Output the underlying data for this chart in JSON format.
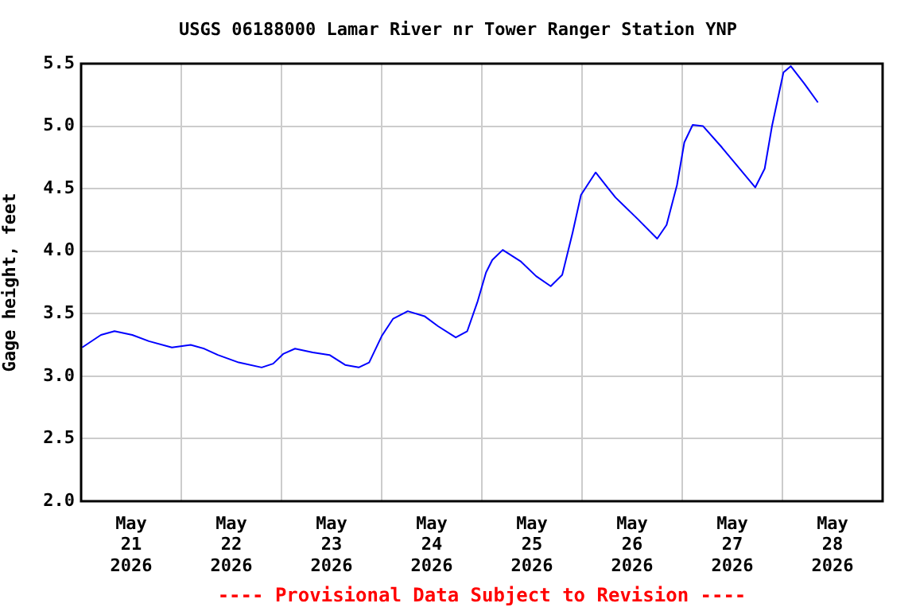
{
  "chart_data": {
    "type": "line",
    "title": "USGS 06188000 Lamar River nr Tower Ranger Station YNP",
    "ylabel": "Gage height, feet",
    "annotations": [
      "---- Provisional Data Subject to Revision ----"
    ],
    "x": [
      "2026-05-21T00:15",
      "2026-05-21T04:45",
      "2026-05-21T08:00",
      "2026-05-21T12:15",
      "2026-05-21T16:15",
      "2026-05-21T21:45",
      "2026-05-22T02:15",
      "2026-05-22T05:30",
      "2026-05-22T08:45",
      "2026-05-22T13:45",
      "2026-05-22T19:15",
      "2026-05-22T22:00",
      "2026-05-23T00:30",
      "2026-05-23T03:15",
      "2026-05-23T07:30",
      "2026-05-23T11:30",
      "2026-05-23T15:15",
      "2026-05-23T18:30",
      "2026-05-23T21:00",
      "2026-05-24T00:00",
      "2026-05-24T02:45",
      "2026-05-24T06:15",
      "2026-05-24T10:15",
      "2026-05-24T13:30",
      "2026-05-24T17:45",
      "2026-05-24T20:30",
      "2026-05-24T23:00",
      "2026-05-25T01:00",
      "2026-05-25T02:30",
      "2026-05-25T05:00",
      "2026-05-25T09:15",
      "2026-05-25T13:00",
      "2026-05-25T16:30",
      "2026-05-25T19:15",
      "2026-05-25T21:45",
      "2026-05-25T23:45",
      "2026-05-26T03:15",
      "2026-05-26T08:00",
      "2026-05-26T13:15",
      "2026-05-26T18:00",
      "2026-05-26T20:15",
      "2026-05-26T22:45",
      "2026-05-27T00:30",
      "2026-05-27T02:30",
      "2026-05-27T05:00",
      "2026-05-27T09:30",
      "2026-05-27T13:15",
      "2026-05-27T17:30",
      "2026-05-27T19:45",
      "2026-05-27T21:30",
      "2026-05-28T00:15",
      "2026-05-28T02:00",
      "2026-05-28T05:15",
      "2026-05-28T08:30"
    ],
    "series": [
      {
        "color": "#0000ff",
        "values": [
          3.23,
          3.33,
          3.36,
          3.33,
          3.28,
          3.23,
          3.25,
          3.22,
          3.17,
          3.11,
          3.07,
          3.1,
          3.18,
          3.22,
          3.19,
          3.17,
          3.09,
          3.07,
          3.11,
          3.32,
          3.46,
          3.52,
          3.48,
          3.4,
          3.31,
          3.36,
          3.6,
          3.83,
          3.93,
          4.01,
          3.92,
          3.8,
          3.72,
          3.81,
          4.15,
          4.45,
          4.63,
          4.43,
          4.26,
          4.1,
          4.21,
          4.53,
          4.87,
          5.01,
          5.0,
          4.83,
          4.68,
          4.51,
          4.66,
          5.0,
          5.43,
          5.48,
          5.34,
          5.19
        ]
      }
    ],
    "xlim": [
      "2026-05-21",
      "2026-05-29"
    ],
    "xticks": [
      {
        "value": "2026-05-21",
        "label": null
      },
      {
        "value": "2026-05-21T12:00",
        "label": "May\n21\n2026"
      },
      {
        "value": "2026-05-22",
        "label": null
      },
      {
        "value": "2026-05-22T12:00",
        "label": "May\n22\n2026"
      },
      {
        "value": "2026-05-23",
        "label": null
      },
      {
        "value": "2026-05-23T12:00",
        "label": "May\n23\n2026"
      },
      {
        "value": "2026-05-24",
        "label": null
      },
      {
        "value": "2026-05-24T12:00",
        "label": "May\n24\n2026"
      },
      {
        "value": "2026-05-25",
        "label": null
      },
      {
        "value": "2026-05-25T12:00",
        "label": "May\n25\n2026"
      },
      {
        "value": "2026-05-26",
        "label": null
      },
      {
        "value": "2026-05-26T12:00",
        "label": "May\n26\n2026"
      },
      {
        "value": "2026-05-27",
        "label": null
      },
      {
        "value": "2026-05-27T12:00",
        "label": "May\n27\n2026"
      },
      {
        "value": "2026-05-28",
        "label": null
      },
      {
        "value": "2026-05-28T12:00",
        "label": "May\n28\n2026"
      },
      {
        "value": "2026-05-29",
        "label": null
      }
    ],
    "ylim": [
      2.0,
      5.5
    ],
    "yticks": [
      {
        "value": 2.0,
        "label": "2.0"
      },
      {
        "value": 2.5,
        "label": "2.5"
      },
      {
        "value": 3.0,
        "label": "3.0"
      },
      {
        "value": 3.5,
        "label": "3.5"
      },
      {
        "value": 4.0,
        "label": "4.0"
      },
      {
        "value": 4.5,
        "label": "4.5"
      },
      {
        "value": 5.0,
        "label": "5.0"
      },
      {
        "value": 5.5,
        "label": "5.5"
      }
    ],
    "grid": true,
    "legend": false,
    "marker": "none",
    "line_style": "solid"
  }
}
